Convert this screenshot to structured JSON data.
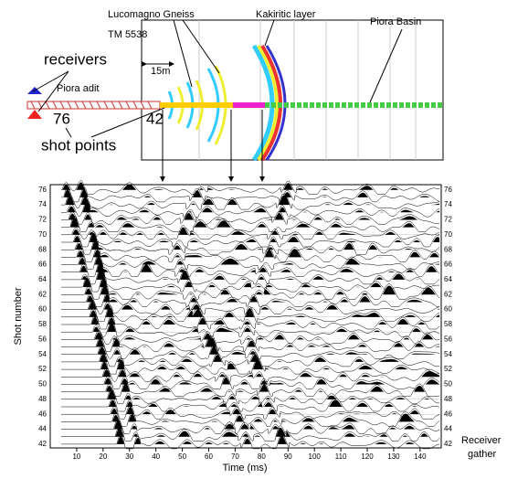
{
  "figure": {
    "labels": {
      "lucomagno": "Lucomagno Gneiss",
      "kakiritic": "Kakiritic layer",
      "piora_basin": "Piora Basin",
      "tm": "TM 5538",
      "scale": "15m",
      "receivers": "receivers",
      "adit": "Piora adit",
      "shot_first": "76",
      "shot_last": "42",
      "shot_points": "shot points"
    }
  },
  "chart_data": {
    "type": "wiggle",
    "xlabel": "Time (ms)",
    "ylabel": "Shot number",
    "annotation": [
      "Receiver",
      "gather"
    ],
    "xlim": [
      0,
      148
    ],
    "xticks": [
      10,
      20,
      30,
      40,
      50,
      60,
      70,
      80,
      90,
      100,
      110,
      120,
      130,
      140
    ],
    "ylim": [
      41.5,
      76.7
    ],
    "yticks": [
      42,
      44,
      46,
      48,
      50,
      52,
      54,
      56,
      58,
      60,
      62,
      64,
      66,
      68,
      70,
      72,
      74,
      76
    ]
  }
}
